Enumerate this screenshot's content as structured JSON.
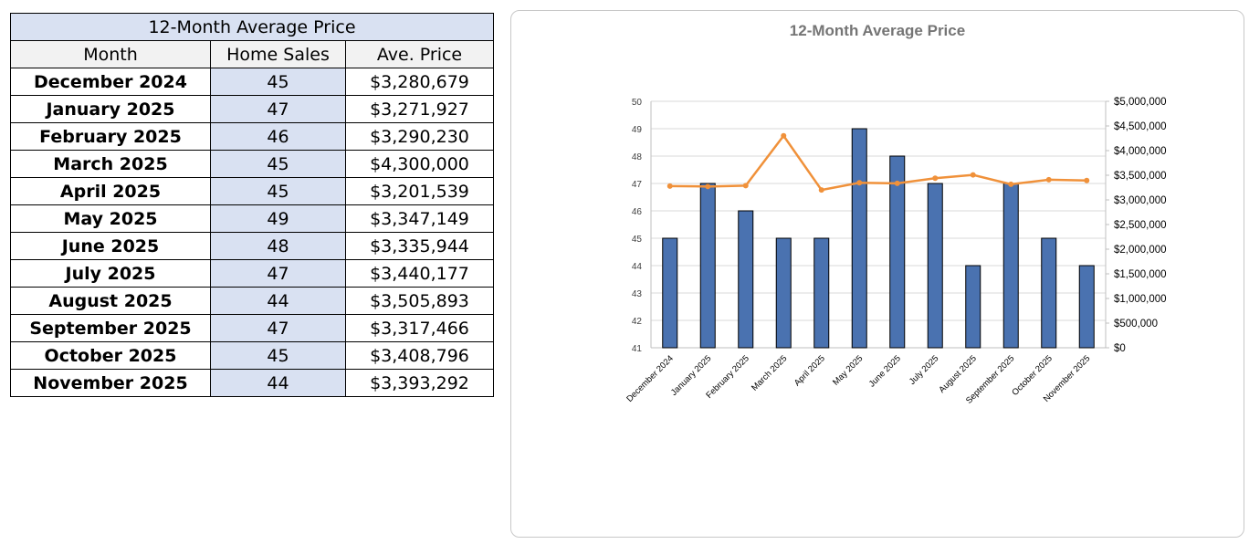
{
  "table": {
    "title": "12-Month Average Price",
    "headers": [
      "Month",
      "Home Sales",
      "Ave. Price"
    ],
    "rows": [
      [
        "December 2024",
        "45",
        "$3,280,679"
      ],
      [
        "January 2025",
        "47",
        "$3,271,927"
      ],
      [
        "February 2025",
        "46",
        "$3,290,230"
      ],
      [
        "March 2025",
        "45",
        "$4,300,000"
      ],
      [
        "April 2025",
        "45",
        "$3,201,539"
      ],
      [
        "May 2025",
        "49",
        "$3,347,149"
      ],
      [
        "June 2025",
        "48",
        "$3,335,944"
      ],
      [
        "July 2025",
        "47",
        "$3,440,177"
      ],
      [
        "August 2025",
        "44",
        "$3,505,893"
      ],
      [
        "September 2025",
        "47",
        "$3,317,466"
      ],
      [
        "October 2025",
        "45",
        "$3,408,796"
      ],
      [
        "November 2025",
        "44",
        "$3,393,292"
      ]
    ]
  },
  "chart_data": {
    "type": "bar",
    "title": "12-Month Average Price",
    "categories": [
      "December 2024",
      "January 2025",
      "February 2025",
      "March 2025",
      "April 2025",
      "May 2025",
      "June 2025",
      "July 2025",
      "August 2025",
      "September 2025",
      "October 2025",
      "November 2025"
    ],
    "series": [
      {
        "name": "Home Sales",
        "type": "bar",
        "axis": "left",
        "color": "#4a72b0",
        "values": [
          45,
          47,
          46,
          45,
          45,
          49,
          48,
          47,
          44,
          47,
          45,
          44
        ]
      },
      {
        "name": "Ave. Price",
        "type": "line",
        "axis": "right",
        "color": "#f0913a",
        "values": [
          3280679,
          3271927,
          3290230,
          4300000,
          3201539,
          3347149,
          3335944,
          3440177,
          3505893,
          3317466,
          3408796,
          3393292
        ]
      }
    ],
    "ylim": [
      41,
      50
    ],
    "y2lim": [
      0,
      5000000
    ],
    "yticks": [
      "41",
      "42",
      "43",
      "44",
      "45",
      "46",
      "47",
      "48",
      "49",
      "50"
    ],
    "y2ticks": [
      "$0",
      "$500,000",
      "$1,000,000",
      "$1,500,000",
      "$2,000,000",
      "$2,500,000",
      "$3,000,000",
      "$3,500,000",
      "$4,000,000",
      "$4,500,000",
      "$5,000,000"
    ],
    "grid": true
  }
}
